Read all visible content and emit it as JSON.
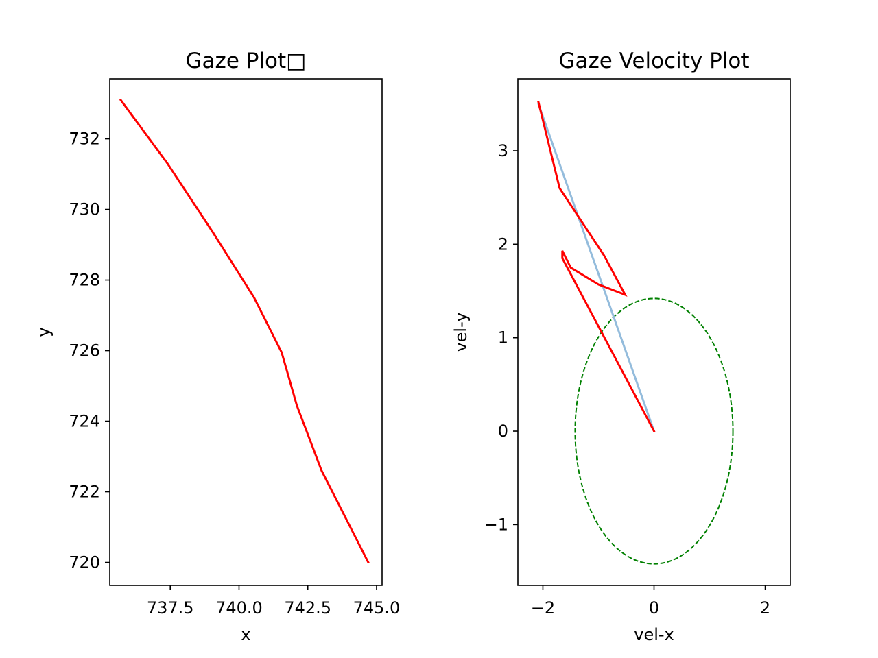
{
  "chart_data": [
    {
      "type": "line",
      "title": "Gaze Plot□",
      "xlabel": "x",
      "ylabel": "y",
      "xlim": [
        735.3,
        745.2
      ],
      "ylim": [
        719.35,
        733.7
      ],
      "xticks": [
        737.5,
        740.0,
        742.5,
        745.0
      ],
      "xtick_labels": [
        "737.5",
        "740.0",
        "742.5",
        "745.0"
      ],
      "yticks": [
        720,
        722,
        724,
        726,
        728,
        730,
        732
      ],
      "ytick_labels": [
        "720",
        "722",
        "724",
        "726",
        "728",
        "730",
        "732"
      ],
      "series": [
        {
          "color": "#ff0000",
          "x": [
            735.7,
            737.4,
            739.05,
            740.55,
            741.55,
            742.1,
            743.0,
            744.7
          ],
          "y": [
            733.1,
            731.3,
            729.35,
            727.5,
            725.95,
            724.45,
            722.6,
            720.0
          ]
        }
      ]
    },
    {
      "type": "line",
      "title": "Gaze Velocity Plot",
      "xlabel": "vel-x",
      "ylabel": "vel-y",
      "xlim": [
        -2.45,
        2.45
      ],
      "ylim": [
        -1.65,
        3.77
      ],
      "xticks": [
        -2,
        0,
        2
      ],
      "xtick_labels": [
        "−2",
        "0",
        "2"
      ],
      "yticks": [
        -1,
        0,
        1,
        2,
        3
      ],
      "ytick_labels": [
        "−1",
        "0",
        "1",
        "2",
        "3"
      ],
      "series": [
        {
          "color": "#94bcdc",
          "x": [
            -2.08,
            0.0
          ],
          "y": [
            3.5,
            0.0
          ]
        },
        {
          "color": "#ff0000",
          "x": [
            0.0,
            -1.65,
            -1.65,
            -1.5,
            -1.0,
            -0.52,
            -0.9,
            -1.7,
            -2.08
          ],
          "y": [
            0.0,
            1.85,
            1.93,
            1.75,
            1.57,
            1.46,
            1.88,
            2.6,
            3.52
          ]
        }
      ],
      "circle": {
        "center": [
          0,
          0
        ],
        "radius": 1.42,
        "color": "#008000",
        "style": "dashed"
      }
    }
  ]
}
